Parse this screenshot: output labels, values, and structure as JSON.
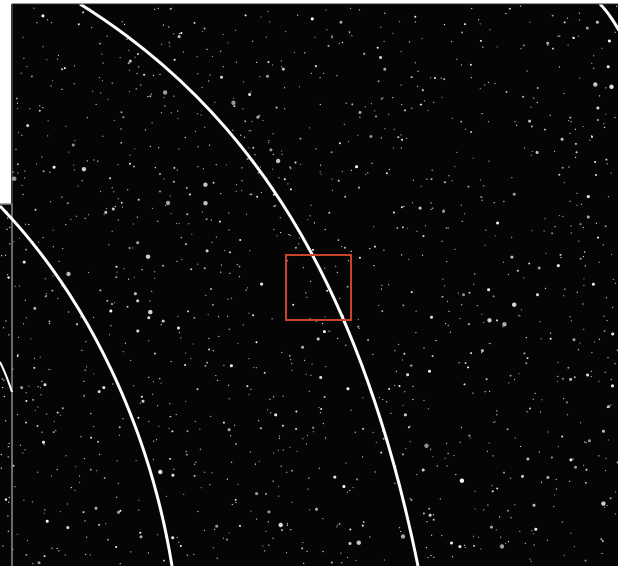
{
  "image": {
    "description_colors": {
      "sky": "#050505",
      "stars": "#ffffff",
      "arc_line": "#ffffff",
      "highlight_box": "#c8442f",
      "panel_border": "#2a2a2a"
    },
    "content_text": []
  }
}
